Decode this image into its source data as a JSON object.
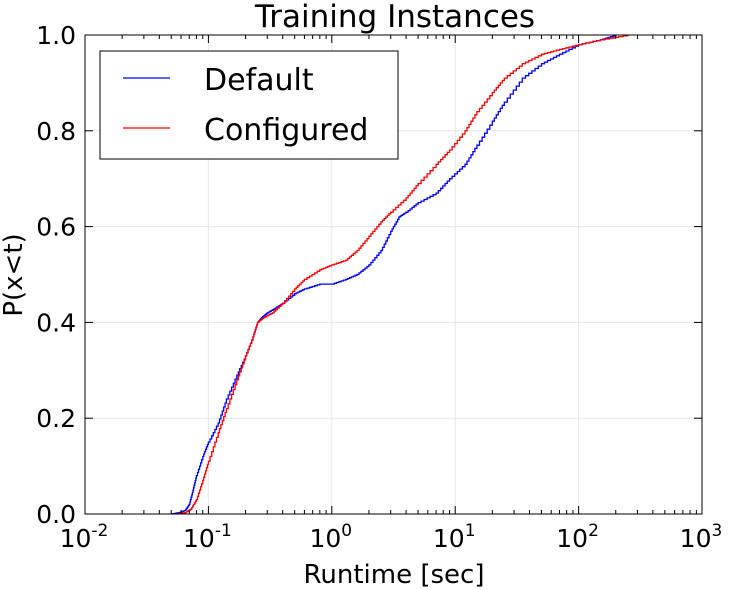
{
  "chart_data": {
    "type": "line",
    "title": "Training Instances",
    "xlabel": "Runtime [sec]",
    "ylabel": "P(x<t)",
    "x_scale": "log",
    "xlim": [
      0.01,
      1000
    ],
    "ylim": [
      0.0,
      1.0
    ],
    "x_ticks": [
      {
        "value": 0.01,
        "base": "10",
        "exp": "-2"
      },
      {
        "value": 0.1,
        "base": "10",
        "exp": "-1"
      },
      {
        "value": 1,
        "base": "10",
        "exp": "0"
      },
      {
        "value": 10,
        "base": "10",
        "exp": "1"
      },
      {
        "value": 100,
        "base": "10",
        "exp": "2"
      },
      {
        "value": 1000,
        "base": "10",
        "exp": "3"
      }
    ],
    "y_ticks": [
      {
        "value": 0.0,
        "label": "0.0"
      },
      {
        "value": 0.2,
        "label": "0.2"
      },
      {
        "value": 0.4,
        "label": "0.4"
      },
      {
        "value": 0.6,
        "label": "0.6"
      },
      {
        "value": 0.8,
        "label": "0.8"
      },
      {
        "value": 1.0,
        "label": "1.0"
      }
    ],
    "grid": true,
    "legend_position": "top-left",
    "series": [
      {
        "name": "Default",
        "color": "#0000ff",
        "points": [
          [
            0.05,
            0.0
          ],
          [
            0.058,
            0.003
          ],
          [
            0.065,
            0.008
          ],
          [
            0.07,
            0.02
          ],
          [
            0.075,
            0.05
          ],
          [
            0.08,
            0.08
          ],
          [
            0.09,
            0.12
          ],
          [
            0.1,
            0.15
          ],
          [
            0.12,
            0.19
          ],
          [
            0.14,
            0.24
          ],
          [
            0.17,
            0.29
          ],
          [
            0.2,
            0.33
          ],
          [
            0.23,
            0.37
          ],
          [
            0.25,
            0.4
          ],
          [
            0.27,
            0.41
          ],
          [
            0.3,
            0.42
          ],
          [
            0.35,
            0.43
          ],
          [
            0.4,
            0.44
          ],
          [
            0.5,
            0.46
          ],
          [
            0.6,
            0.47
          ],
          [
            0.8,
            0.48
          ],
          [
            1.0,
            0.48
          ],
          [
            1.3,
            0.49
          ],
          [
            1.6,
            0.5
          ],
          [
            2.0,
            0.52
          ],
          [
            2.5,
            0.55
          ],
          [
            3.0,
            0.59
          ],
          [
            3.5,
            0.62
          ],
          [
            4.0,
            0.63
          ],
          [
            5.0,
            0.65
          ],
          [
            7.0,
            0.67
          ],
          [
            9.0,
            0.7
          ],
          [
            12.0,
            0.73
          ],
          [
            15.0,
            0.77
          ],
          [
            20.0,
            0.82
          ],
          [
            25.0,
            0.86
          ],
          [
            35.0,
            0.91
          ],
          [
            50.0,
            0.94
          ],
          [
            70.0,
            0.96
          ],
          [
            100.0,
            0.98
          ],
          [
            150.0,
            0.99
          ],
          [
            200.0,
            1.0
          ]
        ]
      },
      {
        "name": "Configured",
        "color": "#ff0000",
        "points": [
          [
            0.055,
            0.0
          ],
          [
            0.065,
            0.003
          ],
          [
            0.072,
            0.01
          ],
          [
            0.08,
            0.03
          ],
          [
            0.09,
            0.07
          ],
          [
            0.1,
            0.11
          ],
          [
            0.12,
            0.17
          ],
          [
            0.14,
            0.22
          ],
          [
            0.17,
            0.28
          ],
          [
            0.2,
            0.33
          ],
          [
            0.23,
            0.37
          ],
          [
            0.25,
            0.4
          ],
          [
            0.28,
            0.41
          ],
          [
            0.33,
            0.42
          ],
          [
            0.4,
            0.44
          ],
          [
            0.5,
            0.47
          ],
          [
            0.6,
            0.49
          ],
          [
            0.8,
            0.51
          ],
          [
            1.0,
            0.52
          ],
          [
            1.3,
            0.53
          ],
          [
            1.6,
            0.55
          ],
          [
            2.0,
            0.58
          ],
          [
            2.5,
            0.61
          ],
          [
            3.0,
            0.63
          ],
          [
            4.0,
            0.66
          ],
          [
            5.0,
            0.69
          ],
          [
            7.0,
            0.73
          ],
          [
            9.0,
            0.76
          ],
          [
            12.0,
            0.8
          ],
          [
            15.0,
            0.84
          ],
          [
            20.0,
            0.88
          ],
          [
            25.0,
            0.91
          ],
          [
            35.0,
            0.94
          ],
          [
            50.0,
            0.96
          ],
          [
            70.0,
            0.97
          ],
          [
            100.0,
            0.98
          ],
          [
            150.0,
            0.99
          ],
          [
            250.0,
            1.0
          ]
        ]
      }
    ]
  }
}
